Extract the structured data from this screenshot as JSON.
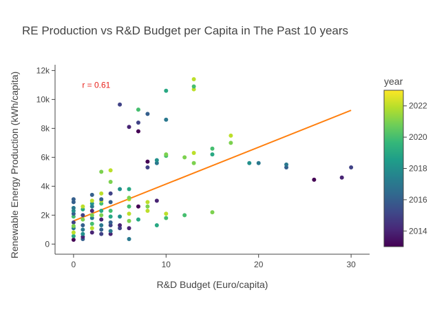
{
  "chart_data": {
    "type": "scatter",
    "title": "RE Production vs R&D Budget per Capita in The Past 10 years",
    "xlabel": "R&D Budget (Euro/capita)",
    "ylabel": "Renewable Energy Production (kWh/capita)",
    "xlim": [
      -2,
      32
    ],
    "ylim": [
      -700,
      12400
    ],
    "xticks": [
      0,
      10,
      20,
      30
    ],
    "xtick_labels": [
      "0",
      "10",
      "20",
      "30"
    ],
    "yticks": [
      0,
      2000,
      4000,
      6000,
      8000,
      10000,
      12000
    ],
    "ytick_labels": [
      "0",
      "2k",
      "4k",
      "6k",
      "8k",
      "10k",
      "12k"
    ],
    "grid": false,
    "annotation": {
      "text": "r = 0.61",
      "x": 1.0,
      "y": 11000,
      "color": "#e8231c"
    },
    "trendline": {
      "x": [
        0,
        30
      ],
      "y": [
        1600,
        9250
      ],
      "color": "#ff7f0e"
    },
    "colorbar": {
      "title": "year",
      "range": [
        2013,
        2023
      ],
      "ticks": [
        2014,
        2016,
        2018,
        2020,
        2022
      ],
      "tick_labels": [
        "2014",
        "2016",
        "2018",
        "2020",
        "2022"
      ],
      "colorscale": [
        "#440154",
        "#482878",
        "#3e4989",
        "#31688e",
        "#26828e",
        "#1f9e89",
        "#35b779",
        "#6ece58",
        "#b5de2b",
        "#fde725"
      ]
    },
    "points": [
      {
        "x": 0,
        "y": 300,
        "year": 2013
      },
      {
        "x": 0,
        "y": 550,
        "year": 2019
      },
      {
        "x": 0,
        "y": 800,
        "year": 2022
      },
      {
        "x": 0,
        "y": 1100,
        "year": 2017
      },
      {
        "x": 0,
        "y": 1500,
        "year": 2015
      },
      {
        "x": 0,
        "y": 1900,
        "year": 2020
      },
      {
        "x": 0,
        "y": 2100,
        "year": 2016
      },
      {
        "x": 0,
        "y": 2300,
        "year": 2018
      },
      {
        "x": 0,
        "y": 2500,
        "year": 2017
      },
      {
        "x": 0,
        "y": 2900,
        "year": 2016
      },
      {
        "x": 0,
        "y": 3100,
        "year": 2016
      },
      {
        "x": 0,
        "y": 1250,
        "year": 2021
      },
      {
        "x": 1,
        "y": 350,
        "year": 2016
      },
      {
        "x": 1,
        "y": 500,
        "year": 2014
      },
      {
        "x": 1,
        "y": 700,
        "year": 2018
      },
      {
        "x": 1,
        "y": 1000,
        "year": 2017
      },
      {
        "x": 1,
        "y": 1300,
        "year": 2016
      },
      {
        "x": 1,
        "y": 1700,
        "year": 2021
      },
      {
        "x": 1,
        "y": 2000,
        "year": 2015
      },
      {
        "x": 1,
        "y": 2400,
        "year": 2019
      },
      {
        "x": 1,
        "y": 2600,
        "year": 2022
      },
      {
        "x": 2,
        "y": 800,
        "year": 2014
      },
      {
        "x": 2,
        "y": 1100,
        "year": 2022
      },
      {
        "x": 2,
        "y": 1400,
        "year": 2020
      },
      {
        "x": 2,
        "y": 1800,
        "year": 2017
      },
      {
        "x": 2,
        "y": 2000,
        "year": 2021
      },
      {
        "x": 2,
        "y": 2300,
        "year": 2014
      },
      {
        "x": 2,
        "y": 2600,
        "year": 2017
      },
      {
        "x": 2,
        "y": 2800,
        "year": 2018
      },
      {
        "x": 2,
        "y": 3000,
        "year": 2022
      },
      {
        "x": 2,
        "y": 3400,
        "year": 2016
      },
      {
        "x": 3,
        "y": 700,
        "year": 2015
      },
      {
        "x": 3,
        "y": 1000,
        "year": 2016
      },
      {
        "x": 3,
        "y": 1300,
        "year": 2017
      },
      {
        "x": 3,
        "y": 1700,
        "year": 2014
      },
      {
        "x": 3,
        "y": 2000,
        "year": 2021
      },
      {
        "x": 3,
        "y": 2300,
        "year": 2019
      },
      {
        "x": 3,
        "y": 2800,
        "year": 2020
      },
      {
        "x": 3,
        "y": 3000,
        "year": 2022
      },
      {
        "x": 3,
        "y": 3100,
        "year": 2016
      },
      {
        "x": 3,
        "y": 3500,
        "year": 2022
      },
      {
        "x": 3,
        "y": 5000,
        "year": 2021
      },
      {
        "x": 4,
        "y": 700,
        "year": 2014
      },
      {
        "x": 4,
        "y": 900,
        "year": 2017
      },
      {
        "x": 4,
        "y": 1300,
        "year": 2015
      },
      {
        "x": 4,
        "y": 1500,
        "year": 2016
      },
      {
        "x": 4,
        "y": 1900,
        "year": 2019
      },
      {
        "x": 4,
        "y": 2300,
        "year": 2020
      },
      {
        "x": 4,
        "y": 2900,
        "year": 2016
      },
      {
        "x": 4,
        "y": 3500,
        "year": 2015
      },
      {
        "x": 4,
        "y": 4300,
        "year": 2021
      },
      {
        "x": 4,
        "y": 5100,
        "year": 2022
      },
      {
        "x": 5,
        "y": 1100,
        "year": 2015
      },
      {
        "x": 5,
        "y": 1300,
        "year": 2014
      },
      {
        "x": 5,
        "y": 1900,
        "year": 2018
      },
      {
        "x": 5,
        "y": 3800,
        "year": 2018
      },
      {
        "x": 5,
        "y": 9650,
        "year": 2015
      },
      {
        "x": 6,
        "y": 350,
        "year": 2017
      },
      {
        "x": 6,
        "y": 1100,
        "year": 2014
      },
      {
        "x": 6,
        "y": 1600,
        "year": 2021
      },
      {
        "x": 6,
        "y": 2100,
        "year": 2022
      },
      {
        "x": 6,
        "y": 2600,
        "year": 2020
      },
      {
        "x": 6,
        "y": 3100,
        "year": 2022
      },
      {
        "x": 6,
        "y": 3200,
        "year": 2021
      },
      {
        "x": 6,
        "y": 3800,
        "year": 2019
      },
      {
        "x": 6,
        "y": 8100,
        "year": 2014
      },
      {
        "x": 7,
        "y": 1700,
        "year": 2019
      },
      {
        "x": 7,
        "y": 2600,
        "year": 2013
      },
      {
        "x": 7,
        "y": 7800,
        "year": 2013
      },
      {
        "x": 7,
        "y": 8400,
        "year": 2015
      },
      {
        "x": 7,
        "y": 9300,
        "year": 2020
      },
      {
        "x": 8,
        "y": 2300,
        "year": 2022
      },
      {
        "x": 8,
        "y": 2600,
        "year": 2021
      },
      {
        "x": 8,
        "y": 2900,
        "year": 2022
      },
      {
        "x": 8,
        "y": 5300,
        "year": 2015
      },
      {
        "x": 8,
        "y": 5700,
        "year": 2013
      },
      {
        "x": 8,
        "y": 9000,
        "year": 2016
      },
      {
        "x": 9,
        "y": 1300,
        "year": 2019
      },
      {
        "x": 9,
        "y": 3000,
        "year": 2014
      },
      {
        "x": 9,
        "y": 5600,
        "year": 2017
      },
      {
        "x": 9,
        "y": 5800,
        "year": 2018
      },
      {
        "x": 10,
        "y": 1800,
        "year": 2020
      },
      {
        "x": 10,
        "y": 2100,
        "year": 2022
      },
      {
        "x": 10,
        "y": 6100,
        "year": 2020
      },
      {
        "x": 10,
        "y": 6200,
        "year": 2021
      },
      {
        "x": 10,
        "y": 8600,
        "year": 2017
      },
      {
        "x": 10,
        "y": 10600,
        "year": 2019
      },
      {
        "x": 12,
        "y": 2000,
        "year": 2020
      },
      {
        "x": 12,
        "y": 6000,
        "year": 2021
      },
      {
        "x": 13,
        "y": 5600,
        "year": 2021
      },
      {
        "x": 13,
        "y": 6300,
        "year": 2022
      },
      {
        "x": 13,
        "y": 10700,
        "year": 2022
      },
      {
        "x": 13,
        "y": 10900,
        "year": 2020
      },
      {
        "x": 13,
        "y": 11400,
        "year": 2022
      },
      {
        "x": 15,
        "y": 2200,
        "year": 2021
      },
      {
        "x": 15,
        "y": 6200,
        "year": 2019
      },
      {
        "x": 15,
        "y": 6600,
        "year": 2020
      },
      {
        "x": 17,
        "y": 7000,
        "year": 2021
      },
      {
        "x": 17,
        "y": 7500,
        "year": 2022
      },
      {
        "x": 19,
        "y": 5600,
        "year": 2018
      },
      {
        "x": 20,
        "y": 5600,
        "year": 2017
      },
      {
        "x": 23,
        "y": 5300,
        "year": 2016
      },
      {
        "x": 23,
        "y": 5500,
        "year": 2017
      },
      {
        "x": 26,
        "y": 4450,
        "year": 2013
      },
      {
        "x": 29,
        "y": 4600,
        "year": 2014
      },
      {
        "x": 30,
        "y": 5300,
        "year": 2015
      }
    ]
  }
}
